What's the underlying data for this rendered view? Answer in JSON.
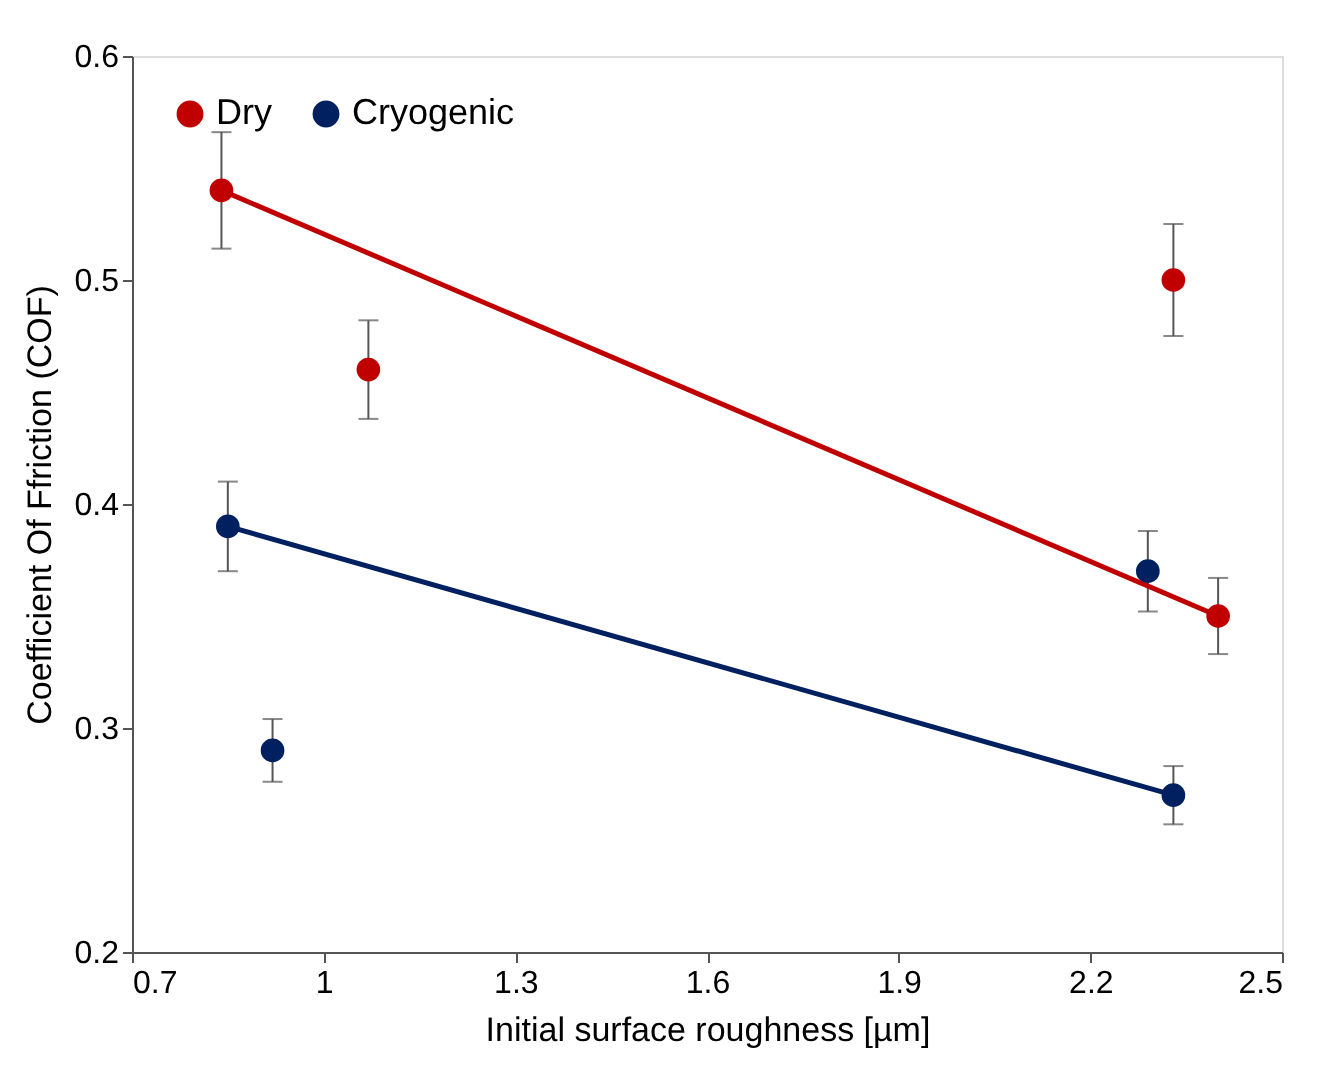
{
  "chart_data": {
    "type": "scatter",
    "xlabel": "Initial surface roughness [µm]",
    "ylabel": "Coefficient Of Ffriction (COF)",
    "xlim": [
      0.7,
      2.5
    ],
    "xticks": [
      0.7,
      {
        "value": 1.0,
        "label": "1"
      },
      1.3,
      1.6,
      1.9,
      2.2,
      2.5
    ],
    "ylim": [
      0.2,
      0.6
    ],
    "yticks": [
      0.2,
      0.3,
      0.4,
      0.5,
      0.6
    ],
    "grid": false,
    "legend": "top left",
    "marker": "circle",
    "series": [
      {
        "name": "Dry",
        "color": "#c00000",
        "x": [
          0.84,
          1.07,
          2.33,
          2.4
        ],
        "values": [
          0.54,
          0.46,
          0.5,
          0.35
        ],
        "errors": [
          0.026,
          0.022,
          0.025,
          0.017
        ]
      },
      {
        "name": "Cryogenic",
        "color": "#002060",
        "x": [
          0.85,
          0.92,
          2.29,
          2.33
        ],
        "values": [
          0.39,
          0.29,
          0.37,
          0.27
        ],
        "errors": [
          0.02,
          0.014,
          0.018,
          0.013
        ]
      },
      {
        "type": "line",
        "color": "#c00000",
        "x": [
          0.84,
          2.4
        ],
        "values": [
          0.54,
          0.35
        ],
        "line_style": "solid",
        "marker": "none"
      },
      {
        "type": "line",
        "color": "#002060",
        "x": [
          0.85,
          2.33
        ],
        "values": [
          0.39,
          0.27
        ],
        "line_style": "solid",
        "marker": "none"
      }
    ]
  }
}
